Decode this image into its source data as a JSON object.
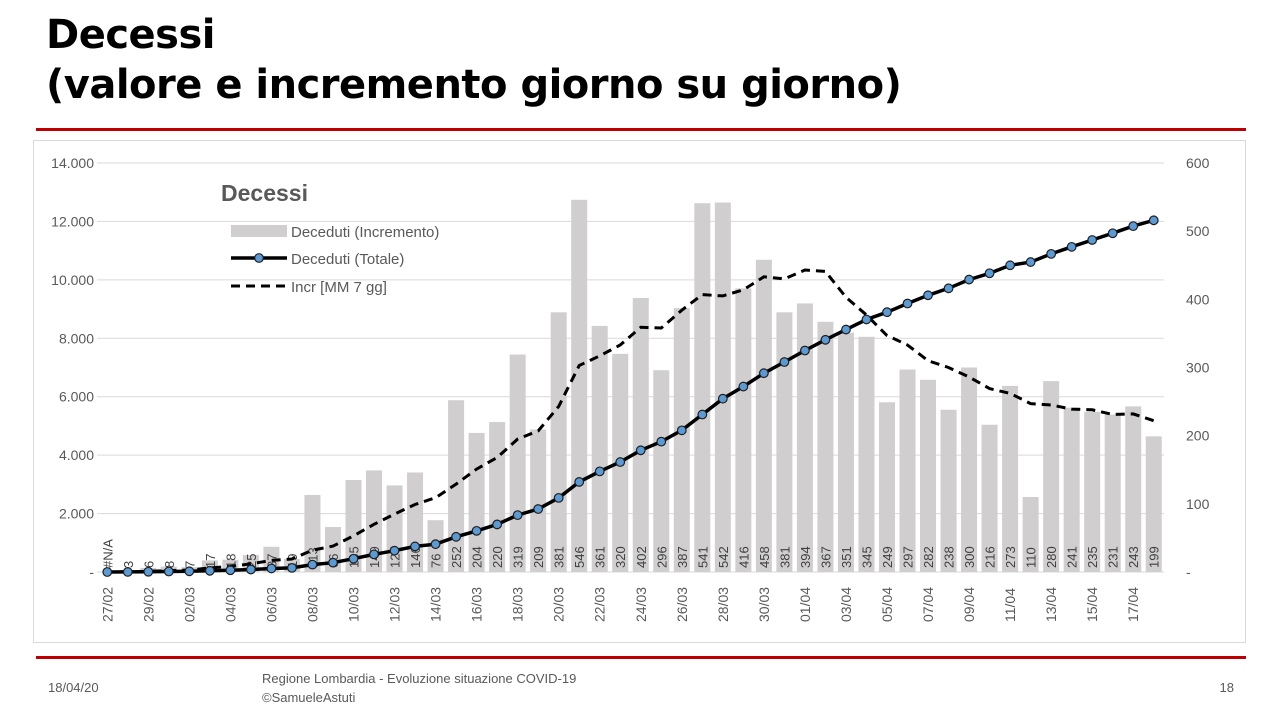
{
  "slide": {
    "title_line1": "Decessi",
    "title_line2": "(valore e incremento giorno su giorno)",
    "footer_date": "18/04/20",
    "footer_source_line1": "Regione Lombardia - Evoluzione situazione COVID-19",
    "footer_source_line2": "©SamueleAstuti",
    "page_number": "18"
  },
  "colors": {
    "accent_rule": "#c00000",
    "bars": "#d0cece",
    "total_line": "#000000",
    "marker_fill": "#5b9bd5",
    "avg_line": "#000000",
    "grid": "#d9d9d9"
  },
  "chart_data": {
    "type": "bar",
    "title": "Decessi",
    "dates": [
      "27/02",
      "28/02",
      "29/02",
      "01/03",
      "02/03",
      "03/03",
      "04/03",
      "05/03",
      "06/03",
      "07/03",
      "08/03",
      "09/03",
      "10/03",
      "11/03",
      "12/03",
      "13/03",
      "14/03",
      "15/03",
      "16/03",
      "17/03",
      "18/03",
      "19/03",
      "20/03",
      "21/03",
      "22/03",
      "23/03",
      "24/03",
      "25/03",
      "26/03",
      "27/03",
      "28/03",
      "29/03",
      "30/03",
      "31/03",
      "01/04",
      "02/04",
      "03/04",
      "04/04",
      "05/04",
      "06/04",
      "07/04",
      "08/04",
      "09/04",
      "10/04",
      "11/04",
      "12/04",
      "13/04",
      "14/04",
      "15/04",
      "16/04",
      "17/04",
      "18/04"
    ],
    "x_tick_labels": [
      "27/02",
      "29/02",
      "02/03",
      "04/03",
      "06/03",
      "08/03",
      "10/03",
      "12/03",
      "14/03",
      "16/03",
      "18/03",
      "20/03",
      "22/03",
      "24/03",
      "26/03",
      "28/03",
      "30/03",
      "01/04",
      "03/04",
      "05/04",
      "07/04",
      "09/04",
      "11/04",
      "13/04",
      "15/04",
      "17/04"
    ],
    "left_axis": {
      "min": 0,
      "max": 14000,
      "ticks": [
        "-",
        "2.000",
        "4.000",
        "6.000",
        "8.000",
        "10.000",
        "12.000",
        "14.000"
      ]
    },
    "right_axis": {
      "min": 0,
      "max": 600,
      "ticks": [
        "-",
        "100",
        "200",
        "300",
        "400",
        "500",
        "600"
      ]
    },
    "legend_position": "top-left",
    "grid": true,
    "series": [
      {
        "name": "Deceduti (Incremento)",
        "type": "bar",
        "axis": "right",
        "labels": [
          "#N/A",
          "3",
          "6",
          "8",
          "7",
          "17",
          "18",
          "25",
          "37",
          "19",
          "113",
          "66",
          "135",
          "149",
          "127",
          "146",
          "76",
          "252",
          "204",
          "220",
          "319",
          "209",
          "381",
          "546",
          "361",
          "320",
          "402",
          "296",
          "387",
          "541",
          "542",
          "416",
          "458",
          "381",
          "394",
          "367",
          "351",
          "345",
          "249",
          "297",
          "282",
          "238",
          "300",
          "216",
          "273",
          "110",
          "280",
          "241",
          "235",
          "231",
          "243",
          "199"
        ],
        "values": [
          0,
          3,
          6,
          8,
          7,
          17,
          18,
          25,
          37,
          19,
          113,
          66,
          135,
          149,
          127,
          146,
          76,
          252,
          204,
          220,
          319,
          209,
          381,
          546,
          361,
          320,
          402,
          296,
          387,
          541,
          542,
          416,
          458,
          381,
          394,
          367,
          351,
          345,
          249,
          297,
          282,
          238,
          300,
          216,
          273,
          110,
          280,
          241,
          235,
          231,
          243,
          199
        ]
      },
      {
        "name": "Deceduti (Totale)",
        "type": "line",
        "axis": "left",
        "values": [
          0,
          3,
          9,
          17,
          24,
          41,
          59,
          84,
          121,
          140,
          253,
          319,
          454,
          603,
          730,
          876,
          952,
          1204,
          1408,
          1628,
          1947,
          2156,
          2537,
          3083,
          3444,
          3764,
          4166,
          4462,
          4849,
          5390,
          5932,
          6348,
          6806,
          7187,
          7581,
          7948,
          8299,
          8644,
          8893,
          9190,
          9472,
          9710,
          10010,
          10226,
          10499,
          10609,
          10889,
          11130,
          11365,
          11596,
          11839,
          12038
        ]
      },
      {
        "name": "Incr [MM 7 gg]",
        "type": "line",
        "axis": "right",
        "values": [
          0,
          0,
          1,
          2,
          3,
          6,
          8,
          12,
          17,
          19,
          32,
          38,
          53,
          70,
          85,
          99,
          109,
          129,
          151,
          168,
          195,
          207,
          243,
          303,
          317,
          333,
          359,
          358,
          384,
          407,
          405,
          414,
          433,
          430,
          443,
          441,
          403,
          377,
          347,
          333,
          310,
          300,
          286,
          269,
          262,
          247,
          245,
          239,
          238,
          231,
          232,
          222
        ]
      }
    ]
  }
}
